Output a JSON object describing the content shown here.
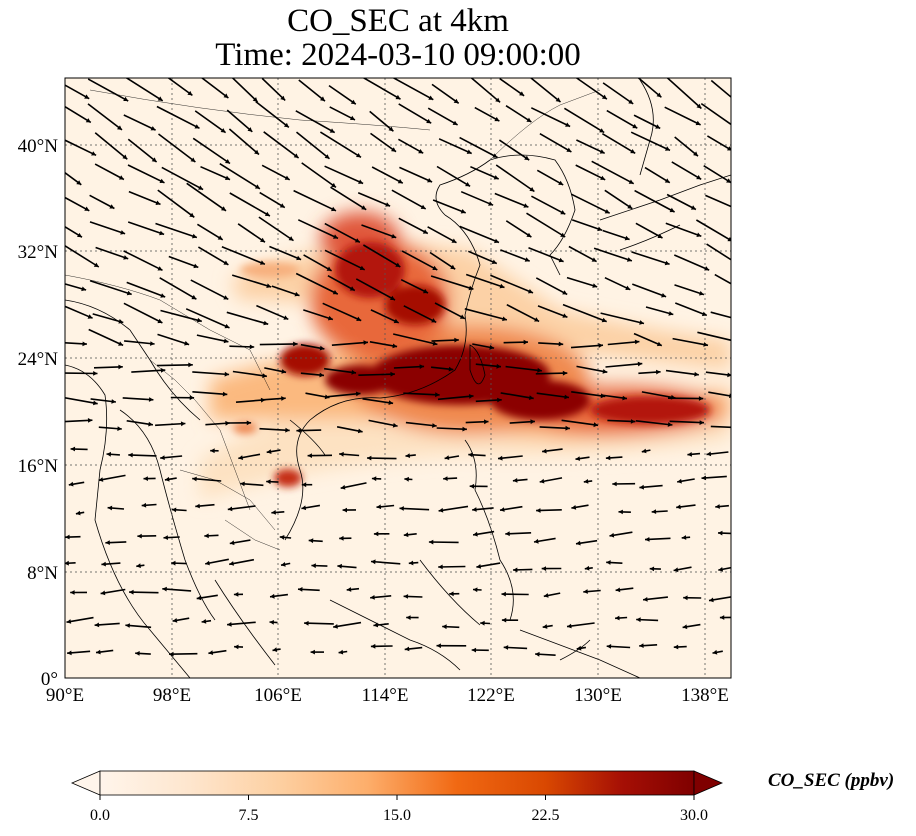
{
  "title": {
    "line1": "CO_SEC at 4km",
    "line2": "Time: 2024-03-10 09:00:00"
  },
  "map": {
    "lon_range": [
      90,
      140
    ],
    "lat_range": [
      0,
      45
    ],
    "lon_ticks": [
      "90°E",
      "98°E",
      "106°E",
      "114°E",
      "122°E",
      "130°E",
      "138°E"
    ],
    "lat_ticks": [
      "0°",
      "8°N",
      "16°N",
      "24°N",
      "32°N",
      "40°N"
    ],
    "gridlines": true,
    "field": "CO_SEC",
    "overlay": "wind vectors"
  },
  "colorbar": {
    "label": "CO_SEC (ppbv)",
    "ticks": [
      "0.0",
      "7.5",
      "15.0",
      "22.5",
      "30.0"
    ],
    "min": 0,
    "max": 30,
    "colormap": [
      "#fff5eb",
      "#fee6ce",
      "#fdd0a2",
      "#fdae6b",
      "#fd8d3c",
      "#f16913",
      "#d94801",
      "#a63603",
      "#7f0000"
    ],
    "extend": "both"
  }
}
